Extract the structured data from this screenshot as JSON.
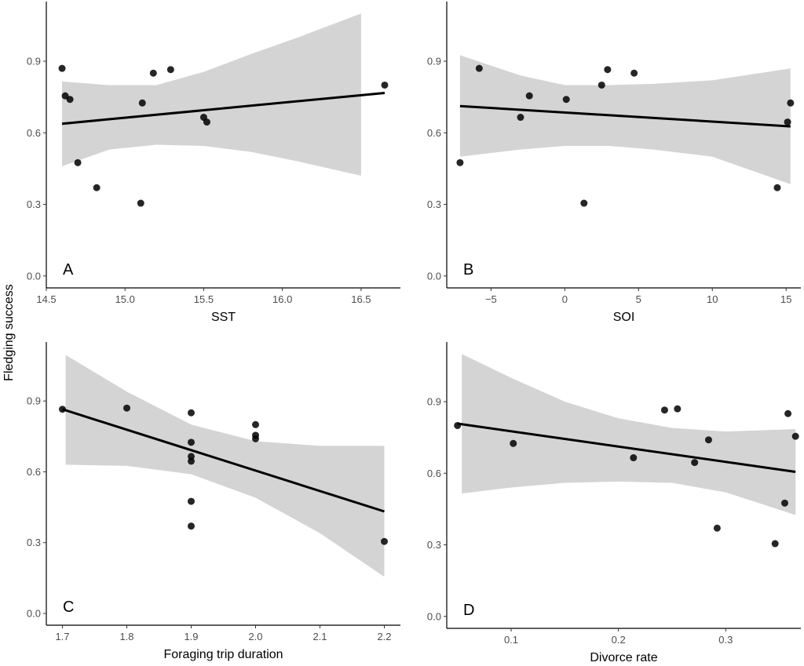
{
  "figure": {
    "shared_ylabel": "Fledging success"
  },
  "chart_data": [
    {
      "type": "scatter",
      "panel": "A",
      "xlabel": "SST",
      "ylabel": "Fledging success",
      "xlim": [
        14.5,
        16.75
      ],
      "ylim": [
        -0.05,
        1.15
      ],
      "xticks": [
        14.5,
        15.0,
        15.5,
        16.0,
        16.5
      ],
      "xtick_labels": [
        "14.5",
        "15.0",
        "15.5",
        "16.0",
        "16.5"
      ],
      "yticks": [
        0.0,
        0.3,
        0.6,
        0.9
      ],
      "ytick_labels": [
        "0.0",
        "0.3",
        "0.6",
        "0.9"
      ],
      "points": [
        {
          "x": 14.6,
          "y": 0.87
        },
        {
          "x": 14.62,
          "y": 0.755
        },
        {
          "x": 14.65,
          "y": 0.74
        },
        {
          "x": 14.7,
          "y": 0.475
        },
        {
          "x": 14.82,
          "y": 0.37
        },
        {
          "x": 15.1,
          "y": 0.305
        },
        {
          "x": 15.11,
          "y": 0.725
        },
        {
          "x": 15.18,
          "y": 0.85
        },
        {
          "x": 15.29,
          "y": 0.865
        },
        {
          "x": 15.5,
          "y": 0.665
        },
        {
          "x": 15.52,
          "y": 0.645
        },
        {
          "x": 16.65,
          "y": 0.8
        }
      ],
      "fit": {
        "x": [
          14.6,
          16.65
        ],
        "y": [
          0.638,
          0.767
        ]
      },
      "ci_band": {
        "x": [
          14.6,
          14.9,
          15.2,
          15.5,
          15.8,
          16.1,
          16.5
        ],
        "lower": [
          0.46,
          0.53,
          0.55,
          0.545,
          0.52,
          0.48,
          0.42
        ],
        "upper": [
          0.815,
          0.8,
          0.8,
          0.855,
          0.93,
          1.0,
          1.1
        ]
      },
      "grid": false,
      "legend": "none"
    },
    {
      "type": "scatter",
      "panel": "B",
      "xlabel": "SOI",
      "ylabel": "Fledging success",
      "xlim": [
        -8,
        16
      ],
      "ylim": [
        -0.05,
        1.15
      ],
      "xticks": [
        -5,
        0,
        5,
        10,
        15
      ],
      "xtick_labels": [
        "−5",
        "0",
        "5",
        "10",
        "15"
      ],
      "yticks": [
        0.0,
        0.3,
        0.6,
        0.9
      ],
      "ytick_labels": [
        "0.0",
        "0.3",
        "0.6",
        "0.9"
      ],
      "points": [
        {
          "x": -7.1,
          "y": 0.475
        },
        {
          "x": -5.8,
          "y": 0.87
        },
        {
          "x": -3.0,
          "y": 0.665
        },
        {
          "x": -2.4,
          "y": 0.755
        },
        {
          "x": 0.1,
          "y": 0.74
        },
        {
          "x": 1.3,
          "y": 0.305
        },
        {
          "x": 2.5,
          "y": 0.8
        },
        {
          "x": 2.9,
          "y": 0.865
        },
        {
          "x": 4.7,
          "y": 0.85
        },
        {
          "x": 14.4,
          "y": 0.37
        },
        {
          "x": 15.1,
          "y": 0.645
        },
        {
          "x": 15.3,
          "y": 0.725
        }
      ],
      "fit": {
        "x": [
          -7.1,
          15.3
        ],
        "y": [
          0.712,
          0.627
        ]
      },
      "ci_band": {
        "x": [
          -7.1,
          -3,
          0,
          3,
          6,
          10,
          15.3
        ],
        "lower": [
          0.5,
          0.53,
          0.545,
          0.545,
          0.53,
          0.5,
          0.385
        ],
        "upper": [
          0.925,
          0.84,
          0.8,
          0.8,
          0.805,
          0.82,
          0.87
        ]
      },
      "grid": false,
      "legend": "none"
    },
    {
      "type": "scatter",
      "panel": "C",
      "xlabel": "Foraging trip duration",
      "ylabel": "Fledging success",
      "xlim": [
        1.675,
        2.225
      ],
      "ylim": [
        -0.05,
        1.15
      ],
      "xticks": [
        1.7,
        1.8,
        1.9,
        2.0,
        2.1,
        2.2
      ],
      "xtick_labels": [
        "1.7",
        "1.8",
        "1.9",
        "2.0",
        "2.1",
        "2.2"
      ],
      "yticks": [
        0.0,
        0.3,
        0.6,
        0.9
      ],
      "ytick_labels": [
        "0.0",
        "0.3",
        "0.6",
        "0.9"
      ],
      "points": [
        {
          "x": 1.7,
          "y": 0.865
        },
        {
          "x": 1.8,
          "y": 0.87
        },
        {
          "x": 1.9,
          "y": 0.85
        },
        {
          "x": 1.9,
          "y": 0.725
        },
        {
          "x": 1.9,
          "y": 0.665
        },
        {
          "x": 1.9,
          "y": 0.645
        },
        {
          "x": 1.9,
          "y": 0.475
        },
        {
          "x": 1.9,
          "y": 0.37
        },
        {
          "x": 2.0,
          "y": 0.8
        },
        {
          "x": 2.0,
          "y": 0.755
        },
        {
          "x": 2.0,
          "y": 0.74
        },
        {
          "x": 2.2,
          "y": 0.305
        }
      ],
      "fit": {
        "x": [
          1.7,
          2.2
        ],
        "y": [
          0.865,
          0.432
        ]
      },
      "ci_band": {
        "x": [
          1.705,
          1.8,
          1.9,
          2.0,
          2.1,
          2.2
        ],
        "lower": [
          0.63,
          0.625,
          0.59,
          0.49,
          0.34,
          0.155
        ],
        "upper": [
          1.095,
          0.94,
          0.8,
          0.73,
          0.71,
          0.71
        ]
      },
      "grid": false,
      "legend": "none"
    },
    {
      "type": "scatter",
      "panel": "D",
      "xlabel": "Divorce rate",
      "ylabel": "Fledging success",
      "xlim": [
        0.04,
        0.37
      ],
      "ylim": [
        -0.05,
        1.15
      ],
      "xticks": [
        0.1,
        0.2,
        0.3
      ],
      "xtick_labels": [
        "0.1",
        "0.2",
        "0.3"
      ],
      "yticks": [
        0.0,
        0.3,
        0.6,
        0.9
      ],
      "ytick_labels": [
        "0.0",
        "0.3",
        "0.6",
        "0.9"
      ],
      "points": [
        {
          "x": 0.05,
          "y": 0.8
        },
        {
          "x": 0.102,
          "y": 0.725
        },
        {
          "x": 0.214,
          "y": 0.665
        },
        {
          "x": 0.243,
          "y": 0.865
        },
        {
          "x": 0.255,
          "y": 0.87
        },
        {
          "x": 0.271,
          "y": 0.645
        },
        {
          "x": 0.284,
          "y": 0.74
        },
        {
          "x": 0.292,
          "y": 0.37
        },
        {
          "x": 0.346,
          "y": 0.305
        },
        {
          "x": 0.355,
          "y": 0.475
        },
        {
          "x": 0.358,
          "y": 0.85
        },
        {
          "x": 0.365,
          "y": 0.755
        }
      ],
      "fit": {
        "x": [
          0.05,
          0.365
        ],
        "y": [
          0.808,
          0.606
        ]
      },
      "ci_band": {
        "x": [
          0.054,
          0.1,
          0.15,
          0.2,
          0.25,
          0.3,
          0.365
        ],
        "lower": [
          0.515,
          0.54,
          0.56,
          0.565,
          0.56,
          0.52,
          0.425
        ],
        "upper": [
          1.1,
          1.0,
          0.9,
          0.83,
          0.79,
          0.775,
          0.785
        ]
      },
      "grid": false,
      "legend": "none"
    }
  ]
}
